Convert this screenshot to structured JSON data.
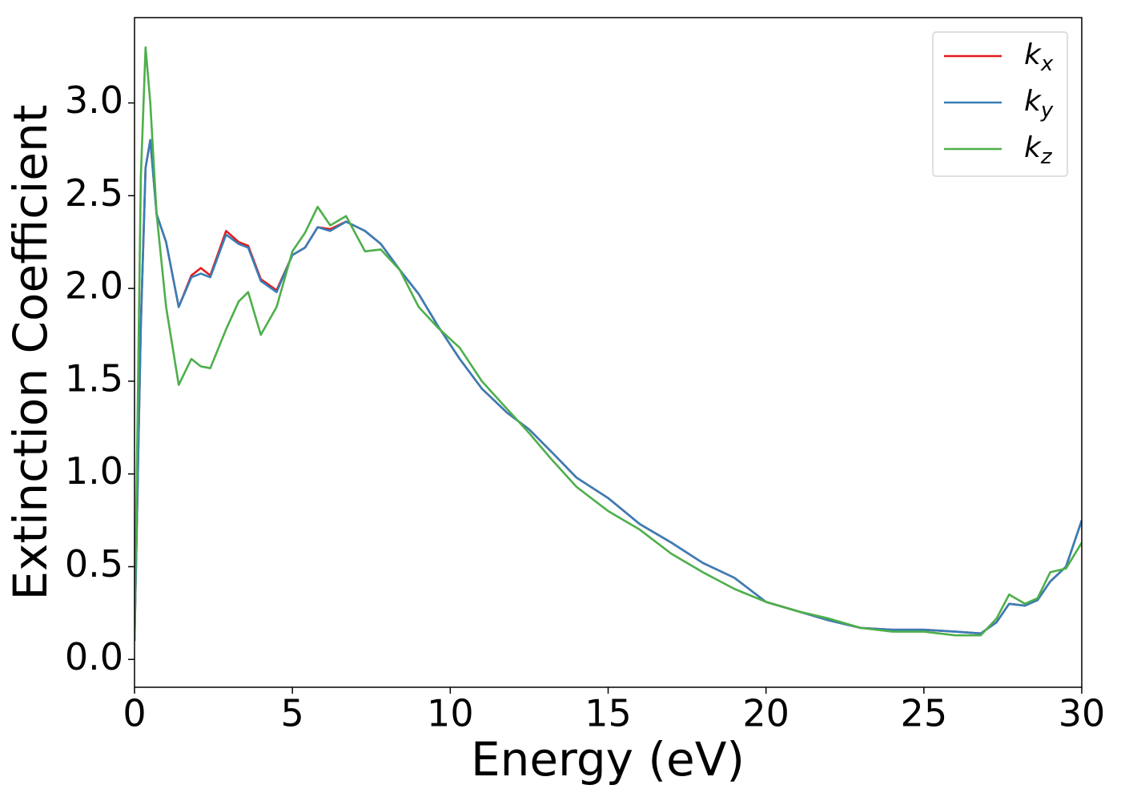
{
  "chart_data": {
    "type": "line",
    "xlabel": "Energy (eV)",
    "ylabel": "Extinction Coefficient",
    "x": [
      0,
      0.2,
      0.35,
      0.5,
      0.7,
      1.0,
      1.4,
      1.8,
      2.1,
      2.4,
      2.9,
      3.3,
      3.6,
      4.0,
      4.5,
      5.0,
      5.4,
      5.8,
      6.2,
      6.7,
      7.3,
      7.8,
      8.4,
      9.0,
      9.6,
      10.3,
      11.0,
      11.8,
      12.5,
      13.2,
      14.0,
      15.0,
      16.0,
      17.0,
      18.0,
      19.0,
      20.0,
      21.0,
      22.0,
      23.0,
      24.0,
      25.0,
      26.0,
      26.8,
      27.3,
      27.7,
      28.2,
      28.6,
      29.0,
      29.5,
      30.0
    ],
    "series": [
      {
        "name": "kx",
        "color": "#e41a1c",
        "values": [
          0.1,
          1.8,
          2.65,
          2.8,
          2.4,
          2.25,
          1.9,
          2.07,
          2.11,
          2.07,
          2.31,
          2.25,
          2.23,
          2.05,
          1.99,
          2.18,
          2.22,
          2.33,
          2.32,
          2.36,
          2.31,
          2.24,
          2.1,
          1.97,
          1.8,
          1.62,
          1.46,
          1.33,
          1.24,
          1.12,
          0.98,
          0.87,
          0.73,
          0.63,
          0.52,
          0.44,
          0.31,
          0.26,
          0.21,
          0.17,
          0.16,
          0.16,
          0.15,
          0.14,
          0.2,
          0.3,
          0.29,
          0.32,
          0.42,
          0.5,
          0.75
        ]
      },
      {
        "name": "ky",
        "color": "#377eb8",
        "values": [
          0.1,
          1.8,
          2.65,
          2.8,
          2.4,
          2.25,
          1.9,
          2.06,
          2.08,
          2.06,
          2.29,
          2.24,
          2.22,
          2.04,
          1.98,
          2.18,
          2.22,
          2.33,
          2.31,
          2.36,
          2.31,
          2.24,
          2.1,
          1.97,
          1.8,
          1.62,
          1.46,
          1.33,
          1.24,
          1.12,
          0.98,
          0.87,
          0.73,
          0.63,
          0.52,
          0.44,
          0.31,
          0.26,
          0.21,
          0.17,
          0.16,
          0.16,
          0.15,
          0.14,
          0.2,
          0.3,
          0.29,
          0.32,
          0.42,
          0.5,
          0.75
        ]
      },
      {
        "name": "kz",
        "color": "#4daf4a",
        "values": [
          0.1,
          2.6,
          3.3,
          3.0,
          2.4,
          1.9,
          1.48,
          1.62,
          1.58,
          1.57,
          1.78,
          1.93,
          1.98,
          1.75,
          1.9,
          2.2,
          2.3,
          2.44,
          2.34,
          2.39,
          2.2,
          2.21,
          2.1,
          1.9,
          1.79,
          1.68,
          1.5,
          1.35,
          1.22,
          1.08,
          0.93,
          0.8,
          0.7,
          0.57,
          0.47,
          0.38,
          0.31,
          0.26,
          0.22,
          0.17,
          0.15,
          0.15,
          0.13,
          0.13,
          0.22,
          0.35,
          0.3,
          0.33,
          0.47,
          0.49,
          0.63
        ]
      }
    ],
    "xlim": [
      0,
      30
    ],
    "xticks": [
      0,
      5,
      10,
      15,
      20,
      25,
      30
    ],
    "ylim": [
      -0.15,
      3.46
    ],
    "yticks": [
      {
        "value": 0,
        "label": "0.0"
      },
      0.5,
      {
        "value": 1,
        "label": "1.0"
      },
      1.5,
      {
        "value": 2,
        "label": "2.0"
      },
      2.5,
      {
        "value": 3,
        "label": "3.0"
      }
    ],
    "grid": false,
    "legend": "upper right"
  }
}
